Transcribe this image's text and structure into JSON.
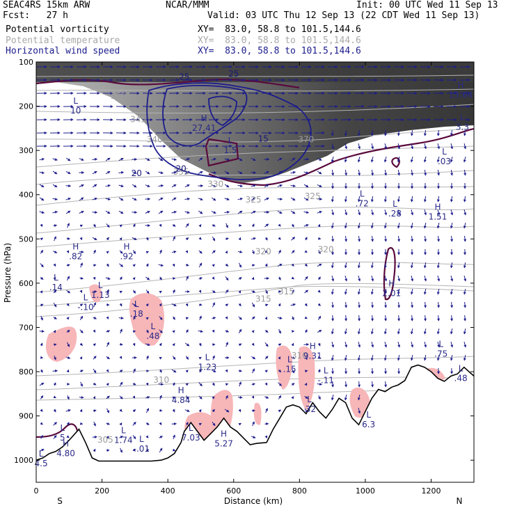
{
  "header": {
    "model": "SEAC4RS 15km ARW",
    "forecast": "Fcst:   27 h",
    "center": "NCAR/MMM",
    "init": "Init: 00 UTC Wed 11 Sep 13",
    "valid": "Valid: 03 UTC Thu 12 Sep 13 (22 CDT Wed 11 Sep 13)"
  },
  "legend": [
    {
      "name": "Potential vorticity",
      "xy": "XY=  83.0, 58.8 to 101.5,144.6",
      "color": "#000000"
    },
    {
      "name": "Potential temperature",
      "xy": "XY=  83.0, 58.8 to 101.5,144.6",
      "color": "#a8a8a8"
    },
    {
      "name": "Horizontal wind speed",
      "xy": "XY=  83.0, 58.8 to 101.5,144.6",
      "color": "#1c1c8c"
    }
  ],
  "colors": {
    "pv_shade_dark": "#3c3c3c",
    "pv_shade_light": "#c8c8c8",
    "pv_negative": "#f7b6b8",
    "pv_contour": "#5a0a3c",
    "theta": "#b4b4b4",
    "wind": "#1c1c8c",
    "terrain": "#000000"
  },
  "chart_data": {
    "type": "cross-section",
    "xlabel": "Distance (km)",
    "ylabel": "Pressure (hPa)",
    "xlim": [
      0,
      1330
    ],
    "ylim": [
      1050,
      100
    ],
    "x_ticks": [
      0,
      200,
      400,
      600,
      800,
      1000,
      1200
    ],
    "y_ticks": [
      100,
      200,
      300,
      400,
      500,
      600,
      700,
      800,
      900,
      1000
    ],
    "end_labels": {
      "left": "S",
      "right": "N"
    },
    "terrain": {
      "x": [
        0,
        20,
        40,
        60,
        80,
        100,
        130,
        150,
        170,
        190,
        200,
        250,
        300,
        350,
        380,
        400,
        420,
        440,
        450,
        470,
        490,
        510,
        530,
        550,
        570,
        590,
        610,
        630,
        650,
        670,
        700,
        720,
        740,
        760,
        780,
        800,
        820,
        840,
        860,
        880,
        900,
        920,
        940,
        960,
        980,
        1000,
        1020,
        1040,
        1060,
        1080,
        1100,
        1120,
        1140,
        1160,
        1180,
        1200,
        1220,
        1240,
        1260,
        1280,
        1300,
        1330
      ],
      "p": [
        1000,
        995,
        985,
        980,
        970,
        955,
        930,
        960,
        995,
        1002,
        1002,
        1002,
        1002,
        1002,
        1000,
        995,
        985,
        960,
        935,
        915,
        935,
        955,
        940,
        925,
        905,
        925,
        935,
        950,
        965,
        962,
        960,
        930,
        905,
        880,
        875,
        880,
        895,
        870,
        890,
        905,
        885,
        860,
        870,
        905,
        920,
        890,
        860,
        840,
        845,
        835,
        830,
        820,
        790,
        785,
        790,
        800,
        815,
        822,
        810,
        805,
        790,
        810
      ]
    },
    "theta_labels": [
      {
        "text": "350",
        "x": 250,
        "p": 183
      },
      {
        "text": "345",
        "x": 310,
        "p": 236
      },
      {
        "text": "340",
        "x": 360,
        "p": 282
      },
      {
        "text": "335",
        "x": 440,
        "p": 355
      },
      {
        "text": "330",
        "x": 545,
        "p": 382
      },
      {
        "text": "325",
        "x": 660,
        "p": 418
      },
      {
        "text": "320",
        "x": 690,
        "p": 535
      },
      {
        "text": "315",
        "x": 690,
        "p": 642
      },
      {
        "text": "310",
        "x": 380,
        "p": 825
      },
      {
        "text": "305",
        "x": 210,
        "p": 960
      },
      {
        "text": "370",
        "x": 820,
        "p": 282
      },
      {
        "text": "315",
        "x": 760,
        "p": 625
      },
      {
        "text": "320",
        "x": 880,
        "p": 530
      },
      {
        "text": "325",
        "x": 840,
        "p": 410
      },
      {
        "text": "310",
        "x": 800,
        "p": 770
      }
    ],
    "wind_speed_labels": [
      {
        "text": "25",
        "x": 450,
        "p": 140
      },
      {
        "text": "20",
        "x": 440,
        "p": 348
      },
      {
        "text": "20",
        "x": 305,
        "p": 358
      },
      {
        "text": "15",
        "x": 690,
        "p": 280
      },
      {
        "text": "25",
        "x": 600,
        "p": 133
      }
    ],
    "extrema": [
      {
        "letter": "L",
        "value": "10",
        "x": 120,
        "p": 205
      },
      {
        "letter": "H",
        "value": "27.41",
        "x": 510,
        "p": 245
      },
      {
        "letter": "L",
        "value": "1.5",
        "x": 590,
        "p": 295
      },
      {
        "letter": "H",
        "value": "13.64",
        "x": 1290,
        "p": 170
      },
      {
        "letter": "L",
        "value": "3.3",
        "x": 1295,
        "p": 242
      },
      {
        "letter": "L",
        "value": ".03",
        "x": 1240,
        "p": 320
      },
      {
        "letter": "L",
        "value": ".72",
        "x": 990,
        "p": 415
      },
      {
        "letter": "L",
        "value": ".28",
        "x": 1090,
        "p": 438
      },
      {
        "letter": "H",
        "value": "1.51",
        "x": 1220,
        "p": 445
      },
      {
        "letter": "H",
        "value": ".82",
        "x": 120,
        "p": 535
      },
      {
        "letter": "H",
        "value": ".92",
        "x": 275,
        "p": 535
      },
      {
        "letter": "L",
        "value": ".14",
        "x": 60,
        "p": 605
      },
      {
        "letter": "L",
        "value": "1.13",
        "x": 195,
        "p": 622
      },
      {
        "letter": "L",
        "value": "-.10",
        "x": 150,
        "p": 650
      },
      {
        "letter": "L",
        "value": ".18",
        "x": 305,
        "p": 665
      },
      {
        "letter": "L",
        "value": ".48",
        "x": 355,
        "p": 715
      },
      {
        "letter": "H",
        "value": "2.01",
        "x": 1080,
        "p": 618
      },
      {
        "letter": "L",
        "value": ".75",
        "x": 1230,
        "p": 755
      },
      {
        "letter": "H",
        "value": "9.31",
        "x": 840,
        "p": 760
      },
      {
        "letter": "L",
        "value": "1.23",
        "x": 520,
        "p": 785
      },
      {
        "letter": "L",
        "value": ".15",
        "x": 770,
        "p": 790
      },
      {
        "letter": "L",
        "value": "-.11",
        "x": 880,
        "p": 815
      },
      {
        "letter": "L",
        "value": ".48",
        "x": 1290,
        "p": 810
      },
      {
        "letter": "H",
        "value": "4.84",
        "x": 440,
        "p": 860
      },
      {
        "letter": "L",
        "value": ".32",
        "x": 830,
        "p": 880
      },
      {
        "letter": "L",
        "value": "6.3",
        "x": 1010,
        "p": 915
      },
      {
        "letter": "L",
        "value": "7.03",
        "x": 470,
        "p": 945
      },
      {
        "letter": "H",
        "value": "5.27",
        "x": 570,
        "p": 958
      },
      {
        "letter": "L",
        "value": "1.74",
        "x": 265,
        "p": 950
      },
      {
        "letter": "L",
        "value": "-.01",
        "x": 320,
        "p": 970
      },
      {
        "letter": "H",
        "value": "4.80",
        "x": 90,
        "p": 980
      },
      {
        "letter": "L",
        "value": "5",
        "x": 80,
        "p": 945
      },
      {
        "letter": "L",
        "value": "4.5",
        "x": 15,
        "p": 1003
      }
    ]
  }
}
